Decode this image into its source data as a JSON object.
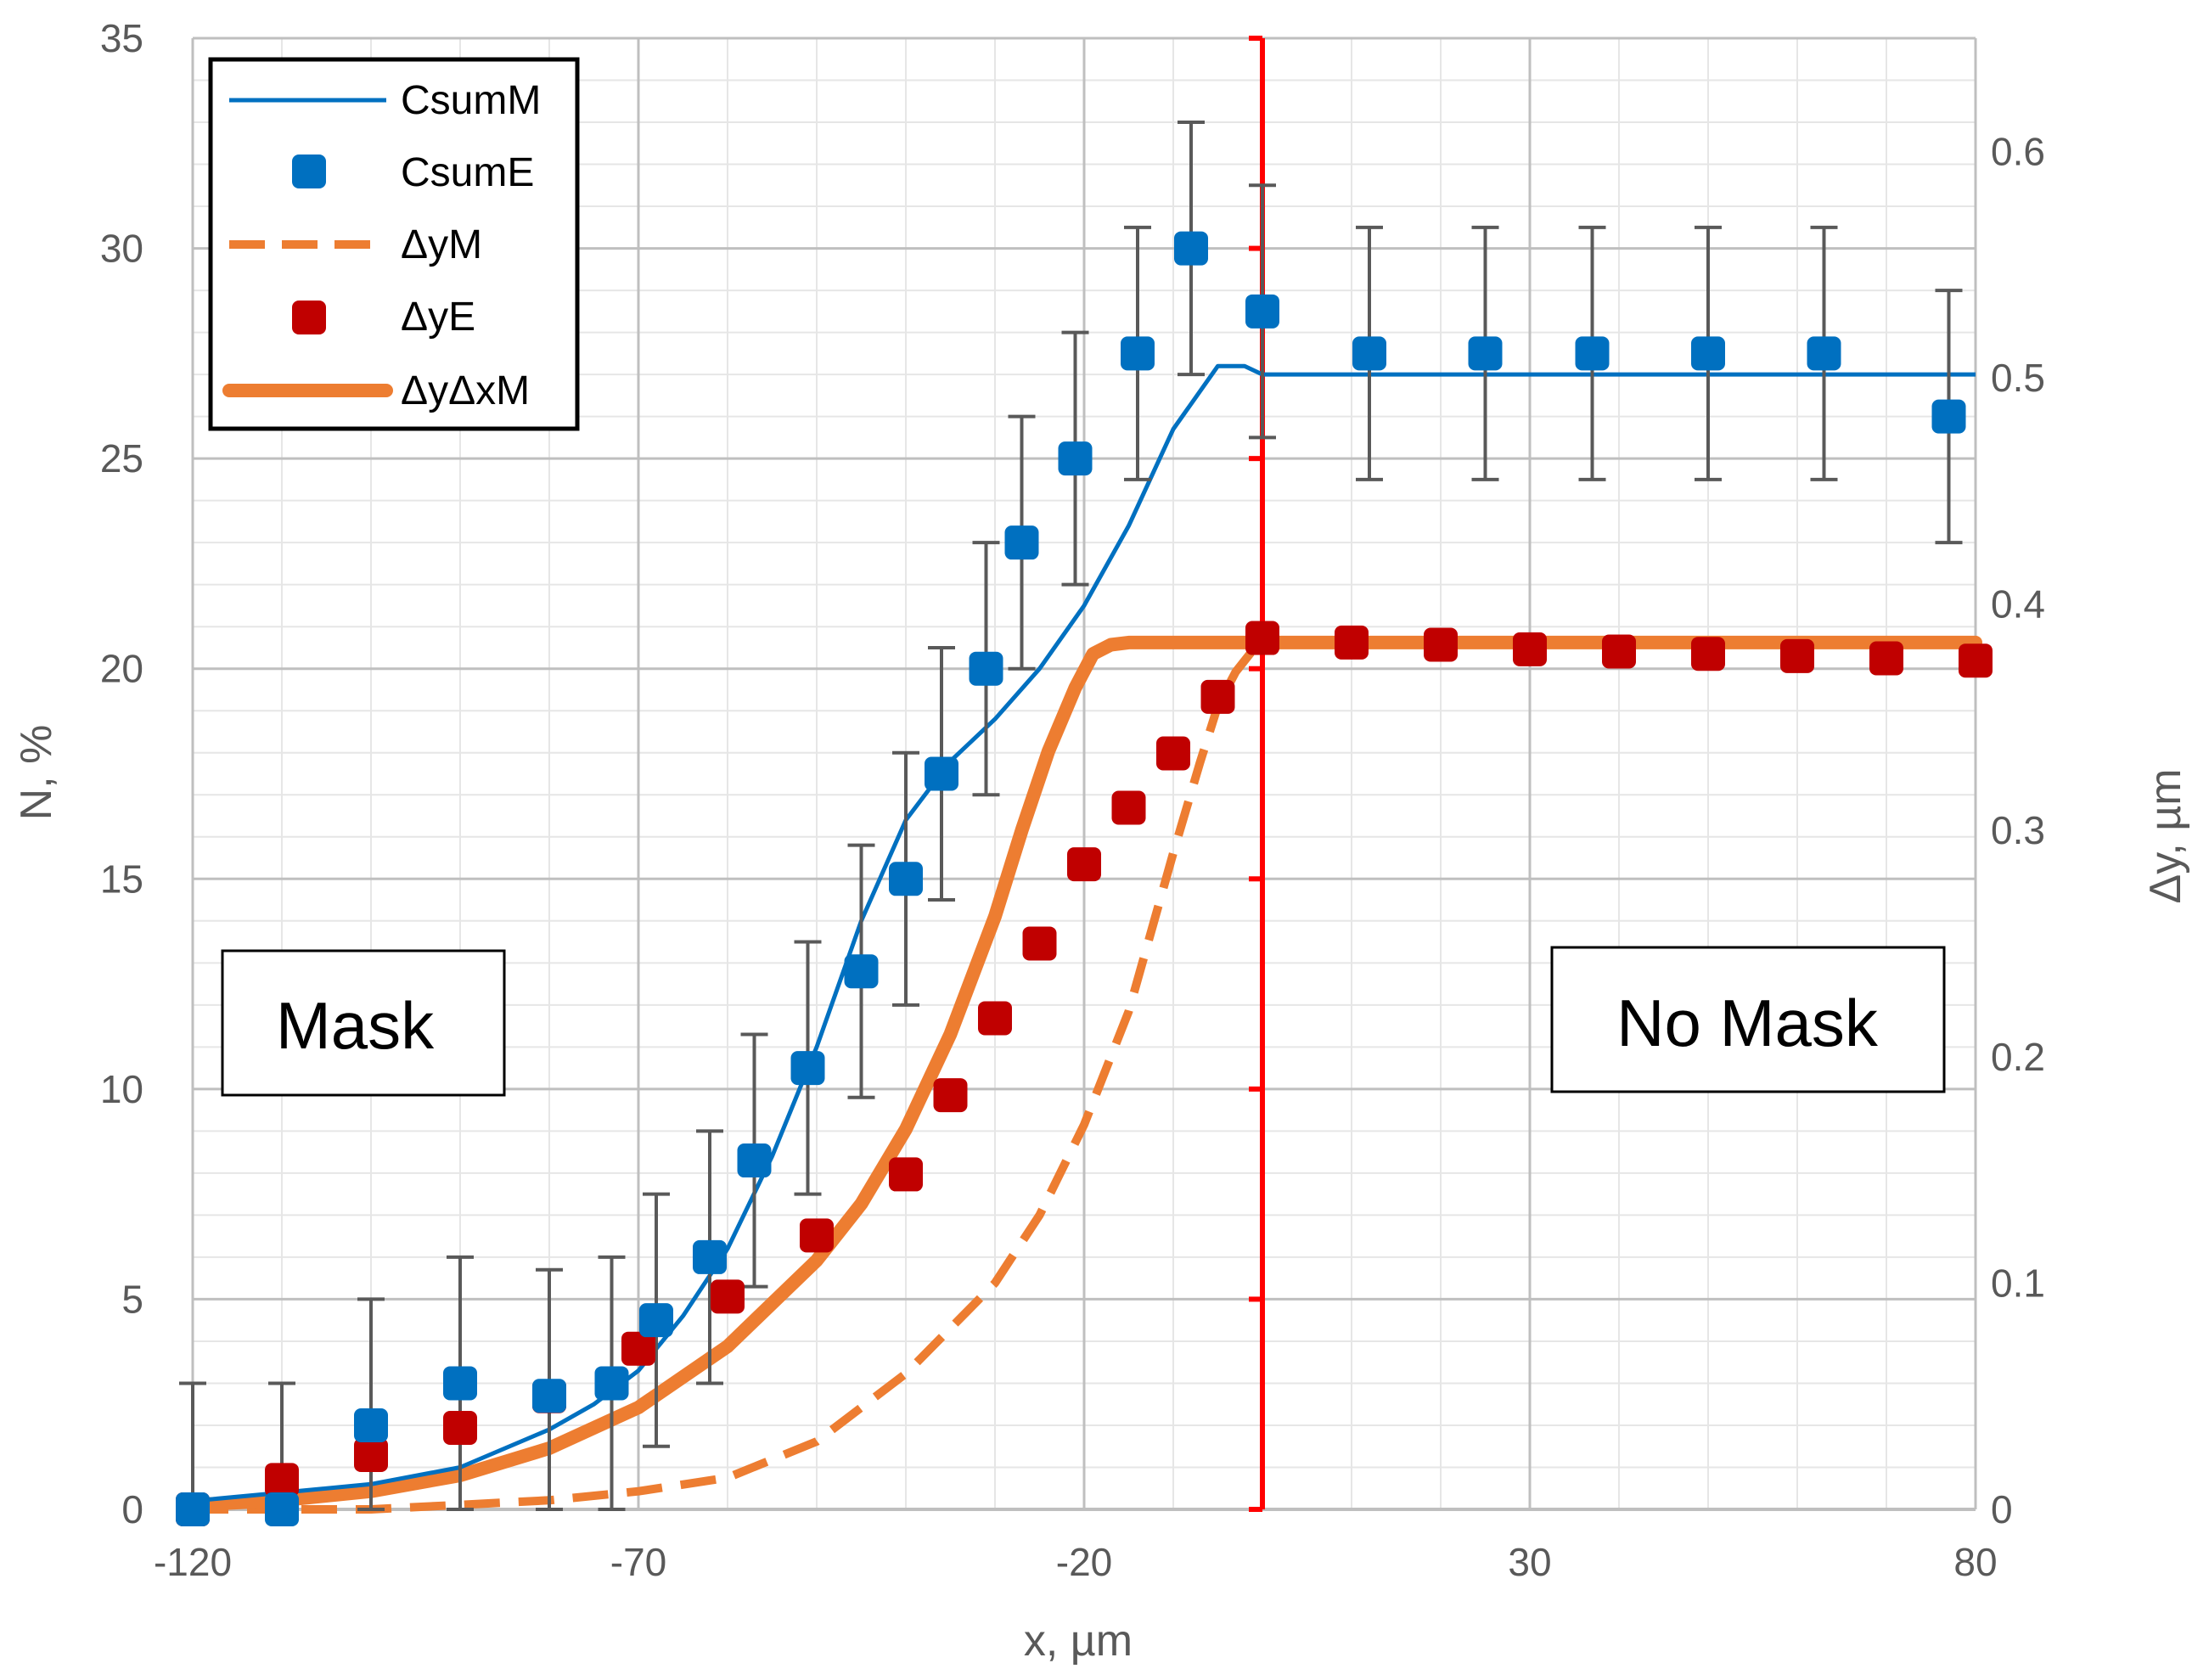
{
  "chart_data": {
    "type": "scatter",
    "xlabel": "x, µm",
    "ylabel_left": "N, %",
    "ylabel_right": "Δy, µm",
    "xlim": [
      -120,
      80
    ],
    "ylim_left": [
      0,
      35
    ],
    "ylim_right": [
      0,
      0.65
    ],
    "x_ticks": [
      -120,
      -70,
      -20,
      30,
      80
    ],
    "y_left_ticks": [
      0,
      5,
      10,
      15,
      20,
      25,
      30,
      35
    ],
    "y_right_ticks": [
      "0",
      "0.1",
      "0.2",
      "0.3",
      "0.4",
      "0.5",
      "0.6"
    ],
    "grid": true,
    "legend_position": "top-left",
    "legend": [
      "CsumM",
      "CsumE",
      "ΔyM",
      "ΔyE",
      "ΔyΔxM"
    ],
    "boundary_line_x": 0,
    "annotations": [
      "Mask",
      "No Mask"
    ],
    "colors": {
      "blue": "#0070C0",
      "orange": "#ED7D31",
      "red": "#C00000",
      "boundary": "#FF0000",
      "grid": "#D9D9D9",
      "errorbar": "#595959"
    },
    "series": [
      {
        "name": "CsumM",
        "axis": "left",
        "style": "thin-line",
        "x": [
          -120,
          -110,
          -100,
          -90,
          -80,
          -75,
          -70,
          -65,
          -60,
          -55,
          -50,
          -45,
          -40,
          -35,
          -30,
          -25,
          -20,
          -15,
          -10,
          -5,
          -2,
          0,
          2,
          5,
          10,
          20,
          40,
          60,
          80
        ],
        "y": [
          0.2,
          0.4,
          0.6,
          1.0,
          1.9,
          2.5,
          3.3,
          4.6,
          6.2,
          8.4,
          11.0,
          14.0,
          16.4,
          17.8,
          18.8,
          20.0,
          21.5,
          23.4,
          25.7,
          27.2,
          27.2,
          27.0,
          27.0,
          27.0,
          27.0,
          27.0,
          27.0,
          27.0,
          27.0
        ]
      },
      {
        "name": "CsumE",
        "axis": "left",
        "style": "square-markers",
        "x": [
          -120,
          -110,
          -100,
          -90,
          -80,
          -73,
          -68,
          -62,
          -57,
          -51,
          -45,
          -40,
          -36,
          -31,
          -27,
          -21,
          -14,
          -8,
          0,
          12,
          25,
          37,
          50,
          63,
          77
        ],
        "y": [
          0,
          0,
          2.0,
          3.0,
          2.7,
          3.0,
          4.5,
          6.0,
          8.3,
          10.5,
          12.8,
          15.0,
          17.5,
          20.0,
          23.0,
          25.0,
          27.5,
          30.0,
          28.5,
          27.5,
          27.5,
          27.5,
          27.5,
          27.5,
          26.0
        ],
        "error": [
          3.0,
          3.0,
          3.0,
          3.0,
          3.0,
          3.0,
          3.0,
          3.0,
          3.0,
          3.0,
          3.0,
          3.0,
          3.0,
          3.0,
          3.0,
          3.0,
          3.0,
          3.0,
          3.0,
          3.0,
          3.0,
          3.0,
          3.0,
          3.0,
          3.0
        ]
      },
      {
        "name": "ΔyM",
        "axis": "right",
        "style": "dashed-line",
        "x": [
          -120,
          -100,
          -90,
          -80,
          -70,
          -60,
          -50,
          -40,
          -35,
          -30,
          -25,
          -20,
          -15,
          -10,
          -7,
          -5,
          -3,
          -1
        ],
        "y": [
          0.0,
          0.0,
          0.002,
          0.004,
          0.008,
          0.014,
          0.03,
          0.06,
          0.08,
          0.1,
          0.13,
          0.17,
          0.22,
          0.29,
          0.33,
          0.355,
          0.37,
          0.38
        ]
      },
      {
        "name": "ΔyE",
        "axis": "right",
        "style": "square-markers",
        "x": [
          -120,
          -110,
          -100,
          -90,
          -80,
          -70,
          -60,
          -50,
          -40,
          -35,
          -30,
          -25,
          -20,
          -15,
          -10,
          -5,
          0,
          10,
          20,
          30,
          40,
          50,
          60,
          70,
          80
        ],
        "y": [
          0.0,
          0.013,
          0.024,
          0.036,
          0.05,
          0.071,
          0.094,
          0.121,
          0.148,
          0.183,
          0.217,
          0.25,
          0.285,
          0.31,
          0.334,
          0.359,
          0.385,
          0.383,
          0.382,
          0.38,
          0.379,
          0.378,
          0.377,
          0.376,
          0.375
        ]
      },
      {
        "name": "ΔyΔxM",
        "axis": "right",
        "style": "thick-line",
        "x": [
          -120,
          -110,
          -100,
          -90,
          -80,
          -70,
          -60,
          -50,
          -45,
          -40,
          -35,
          -30,
          -27,
          -24,
          -21,
          -19,
          -17,
          -15,
          0,
          80
        ],
        "y": [
          0.002,
          0.004,
          0.008,
          0.015,
          0.027,
          0.045,
          0.072,
          0.11,
          0.135,
          0.168,
          0.21,
          0.262,
          0.3,
          0.335,
          0.363,
          0.378,
          0.382,
          0.383,
          0.383,
          0.383
        ]
      }
    ]
  }
}
